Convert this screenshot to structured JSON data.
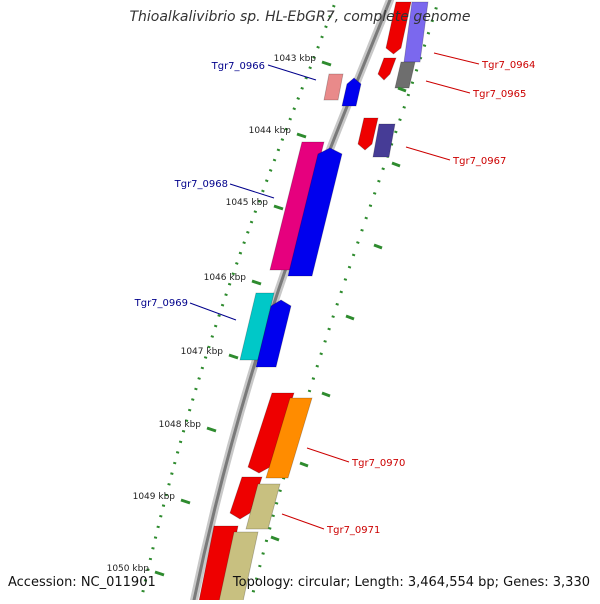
{
  "title": "Thioalkalivibrio sp. HL-EbGR7, complete genome",
  "footer": {
    "accession": "Accession: NC_011901",
    "topology": "Topology: circular; Length: 3,464,554 bp; Genes: 3,330"
  },
  "colors": {
    "backbone": "#808080",
    "tick": "#2e8b2e",
    "label_forward": "#00008b",
    "label_reverse": "#cc0000",
    "cds_forward": "#0000ee",
    "cds_reverse": "#ee0000"
  },
  "kbp_ticks": [
    "1043 kbp",
    "1044 kbp",
    "1045 kbp",
    "1046 kbp",
    "1047 kbp",
    "1048 kbp",
    "1049 kbp",
    "1050 kbp"
  ],
  "gene_labels": [
    {
      "text": "Tgr7_0964",
      "strand": "reverse"
    },
    {
      "text": "Tgr7_0965",
      "strand": "reverse"
    },
    {
      "text": "Tgr7_0966",
      "strand": "forward"
    },
    {
      "text": "Tgr7_0967",
      "strand": "reverse"
    },
    {
      "text": "Tgr7_0968",
      "strand": "forward"
    },
    {
      "text": "Tgr7_0969",
      "strand": "forward"
    },
    {
      "text": "Tgr7_0970",
      "strand": "reverse"
    },
    {
      "text": "Tgr7_0971",
      "strand": "reverse"
    }
  ]
}
